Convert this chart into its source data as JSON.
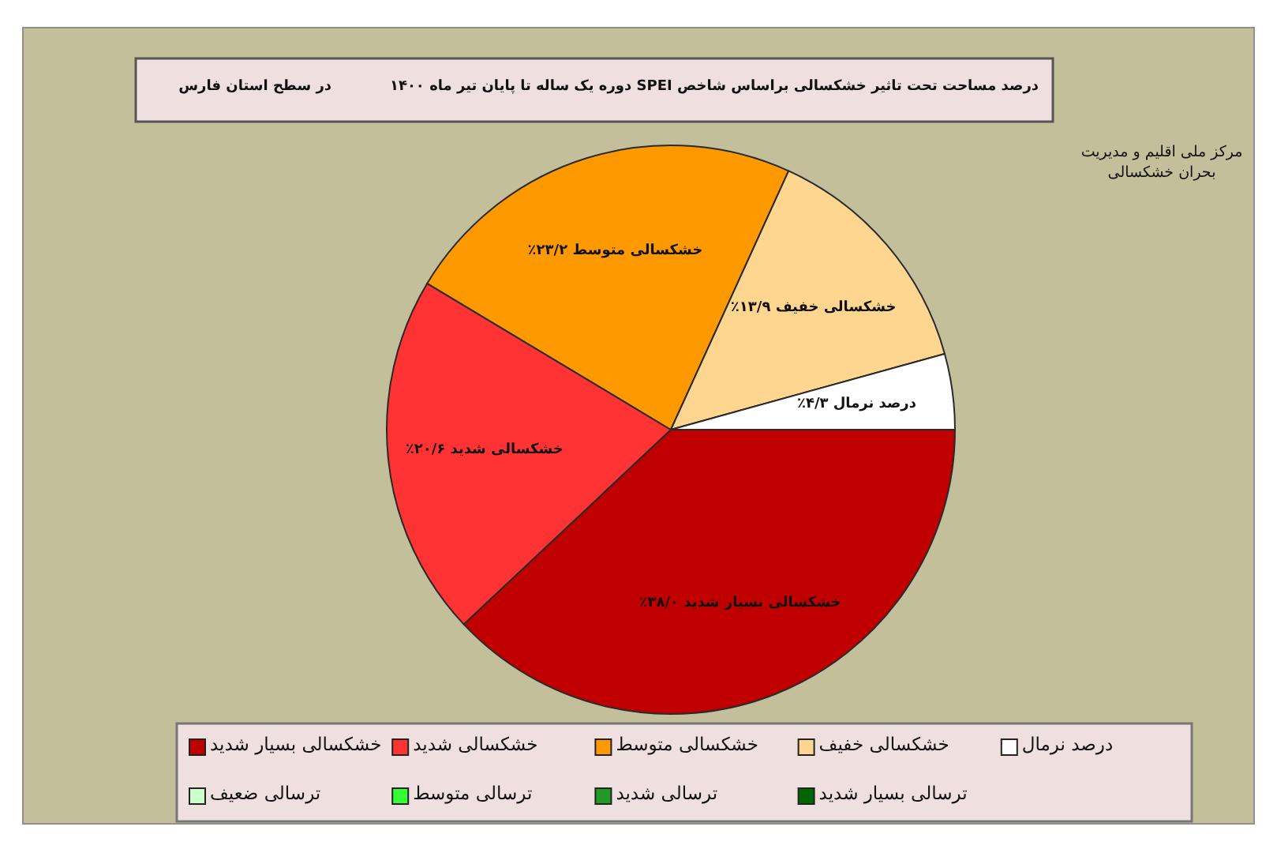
{
  "chart_data": {
    "type": "pie",
    "title": "درصد مساحت تحت تاثیر خشکسالی براساس شاخص SPEI دوره یک ساله تا پایان تیر ماه ۱۴۰۰",
    "subtitle": "در سطح استان فارس",
    "categories": [
      "خشکسالی بسیار شدید",
      "خشکسالی شدید",
      "خشکسالی متوسط",
      "خشکسالی خفیف",
      "درصد نرمال",
      "ترسالی ضعیف",
      "ترسالی متوسط",
      "ترسالی شدید",
      "ترسالی بسیار شدید"
    ],
    "values": [
      38.0,
      20.6,
      23.2,
      13.9,
      4.3,
      0,
      0,
      0,
      0
    ],
    "colors": [
      "#c00000",
      "#ff3333",
      "#ff9900",
      "#ffd68f",
      "#ffffff",
      "#ccffcc",
      "#33ff33",
      "#229922",
      "#006600"
    ],
    "value_labels": [
      "۳۸/۰٪",
      "۲۰/۶٪",
      "۲۳/۲٪",
      "۱۳/۹٪",
      "۴/۳٪",
      null,
      null,
      null,
      null
    ],
    "legend": "bottom",
    "annotations": [
      "مرکز ملی اقلیم و مدیریت بحران خشکسالی"
    ]
  }
}
